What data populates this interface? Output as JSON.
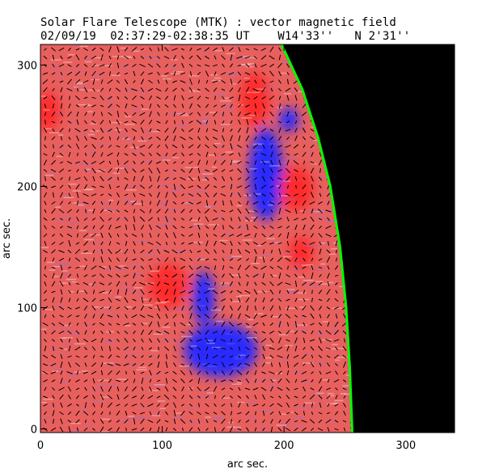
{
  "chart_data": {
    "type": "heatmap",
    "title": "Solar Flare Telescope (MTK) : vector magnetic field",
    "subtitle": {
      "date": "02/09/19",
      "time_range": "02:37:29-02:38:35 UT",
      "longitude": "W14'33''",
      "latitude": "N 2'31''"
    },
    "xlabel": "arc sec.",
    "ylabel": "arc sec.",
    "xlim": [
      0,
      340
    ],
    "ylim": [
      -3,
      317
    ],
    "xticks": [
      "0",
      "100",
      "200",
      "300"
    ],
    "xtick_values": [
      0,
      100,
      200,
      300
    ],
    "yticks": [
      "0",
      "100",
      "200",
      "300"
    ],
    "ytick_values": [
      0,
      100,
      200,
      300
    ],
    "colors": {
      "positive": "#ff2a2a",
      "negative": "#2a2aff",
      "background": "#e8605e",
      "limb": "#00ff00",
      "off_disk": "#000000",
      "vectors": "#000000"
    },
    "limb_points": [
      [
        198,
        317
      ],
      [
        215,
        280
      ],
      [
        228,
        240
      ],
      [
        238,
        200
      ],
      [
        246,
        150
      ],
      [
        251,
        100
      ],
      [
        254,
        50
      ],
      [
        256,
        -3
      ]
    ],
    "polarity_regions": [
      {
        "polarity": "negative",
        "x": 185,
        "y": 210,
        "rx": 14,
        "ry": 38
      },
      {
        "polarity": "negative",
        "x": 134,
        "y": 108,
        "rx": 9,
        "ry": 22
      },
      {
        "polarity": "negative",
        "x": 148,
        "y": 65,
        "rx": 30,
        "ry": 22
      },
      {
        "polarity": "negative",
        "x": 204,
        "y": 255,
        "rx": 8,
        "ry": 10
      },
      {
        "polarity": "positive",
        "x": 176,
        "y": 272,
        "rx": 12,
        "ry": 22
      },
      {
        "polarity": "positive",
        "x": 210,
        "y": 198,
        "rx": 14,
        "ry": 18
      },
      {
        "polarity": "positive",
        "x": 105,
        "y": 118,
        "rx": 16,
        "ry": 18
      },
      {
        "polarity": "positive",
        "x": 214,
        "y": 145,
        "rx": 10,
        "ry": 13
      },
      {
        "polarity": "positive",
        "x": 6,
        "y": 262,
        "rx": 10,
        "ry": 16
      }
    ]
  }
}
